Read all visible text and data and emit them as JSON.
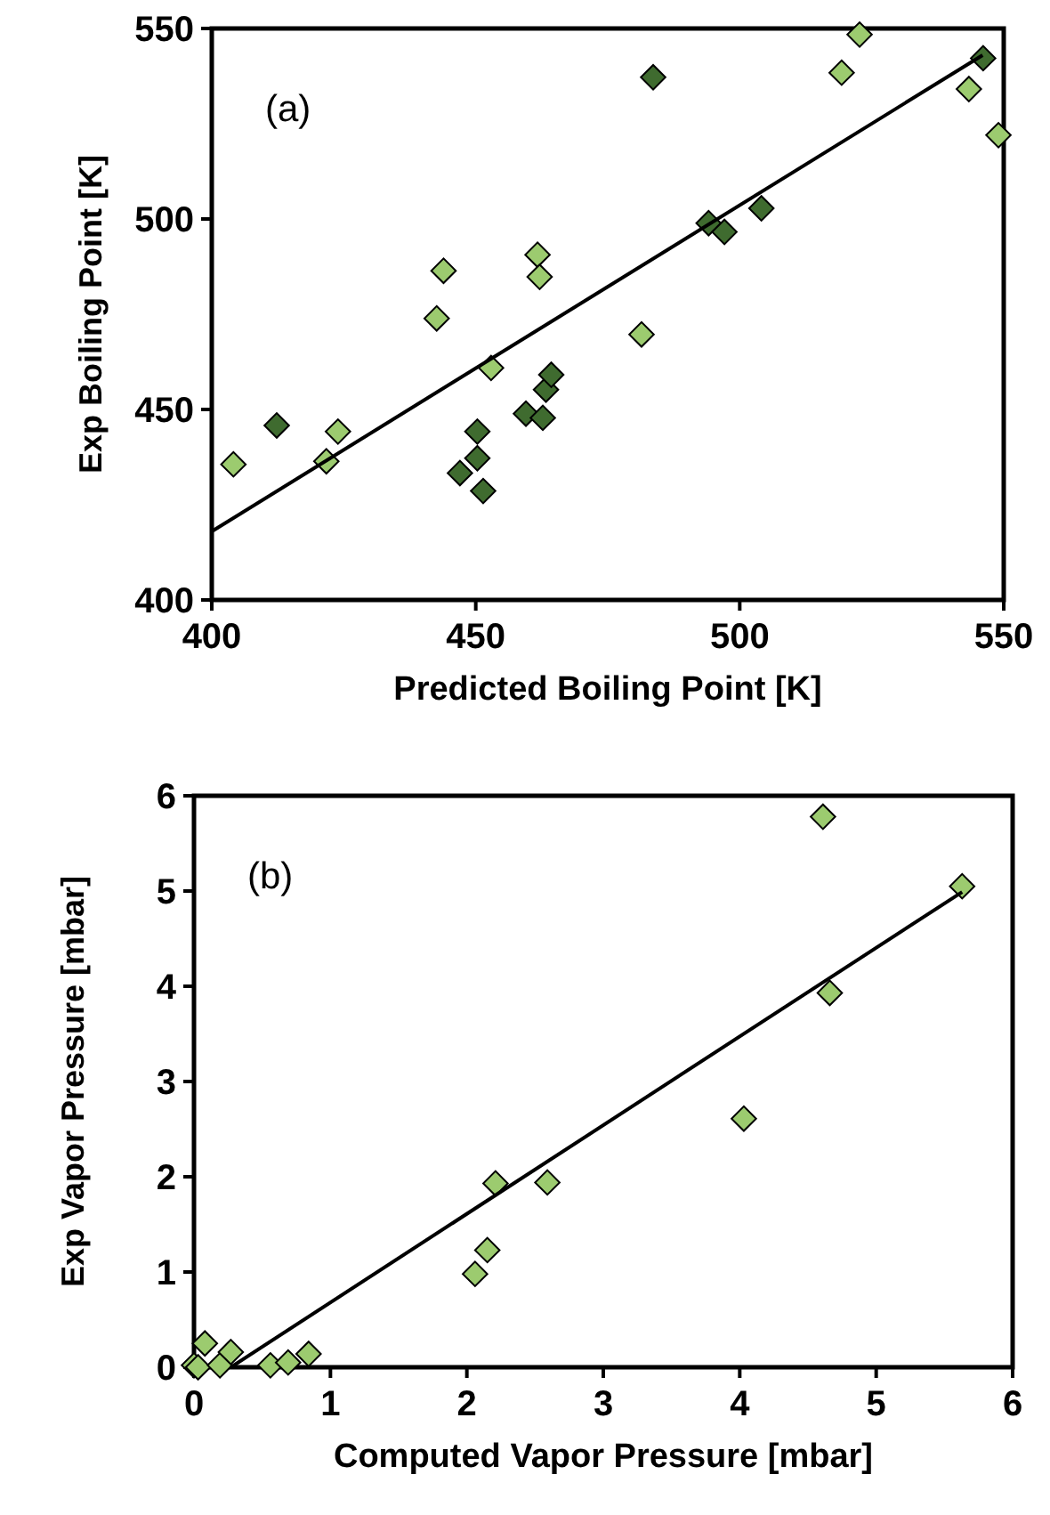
{
  "chart_data": [
    {
      "type": "scatter",
      "xlabel": "Predicted Boiling Point [K]",
      "ylabel": "Exp Boiling Point [K]",
      "annotations": [
        "(a)"
      ],
      "xlim": [
        400,
        550
      ],
      "ylim": [
        400,
        550
      ],
      "xticks": [
        400,
        450,
        500,
        550
      ],
      "yticks": [
        400,
        450,
        500,
        550
      ],
      "marker": "diamond",
      "series": [
        {
          "color": "#9ccb6f",
          "x": [
            404.1,
            421.7,
            423.9,
            442.6,
            443.9,
            452.9,
            461.7,
            462.1,
            481.4,
            519.3,
            522.7,
            543.4,
            549
          ],
          "values": [
            435.6,
            436.4,
            444.2,
            473.9,
            486.4,
            460.9,
            490.6,
            484.8,
            469.7,
            538.4,
            548.4,
            534.1,
            522
          ]
        },
        {
          "color": "#3f6b2f",
          "x": [
            412.3,
            483.6,
            450.3,
            450.3,
            447,
            451.4,
            459.5,
            462.7,
            463.3,
            464.3,
            494.1,
            497.1,
            504.1,
            546.1
          ],
          "values": [
            445.8,
            537.2,
            444.2,
            437.2,
            433.3,
            428.6,
            448.9,
            447.8,
            455.2,
            459.1,
            498.9,
            496.6,
            502.8,
            542.2
          ]
        },
        {
          "type": "line",
          "color": "#000000",
          "marker": "none",
          "x": [
            400,
            546
          ],
          "values": [
            418,
            543
          ]
        }
      ]
    },
    {
      "type": "scatter",
      "xlabel": "Computed Vapor Pressure [mbar]",
      "ylabel": "Exp Vapor Pressure [mbar]",
      "annotations": [
        "(b)"
      ],
      "xlim": [
        0,
        6
      ],
      "ylim": [
        0,
        6
      ],
      "xticks": [
        0,
        1,
        2,
        3,
        4,
        5,
        6
      ],
      "yticks": [
        0,
        1,
        2,
        3,
        4,
        5,
        6
      ],
      "marker": "diamond",
      "series": [
        {
          "color": "#9ccb6f",
          "x": [
            0,
            0.03,
            0.08,
            0.19,
            0.27,
            0.56,
            0.69,
            0.84,
            2.06,
            2.15,
            2.21,
            2.59,
            4.03,
            4.61,
            4.66,
            5.63
          ],
          "values": [
            0.02,
            0,
            0.25,
            0.02,
            0.16,
            0.02,
            0.05,
            0.14,
            0.98,
            1.23,
            1.93,
            1.94,
            2.61,
            5.78,
            3.93,
            5.05
          ]
        },
        {
          "type": "line",
          "color": "#000000",
          "marker": "none",
          "x": [
            0.27,
            5.63
          ],
          "values": [
            0,
            4.99
          ]
        }
      ]
    }
  ]
}
